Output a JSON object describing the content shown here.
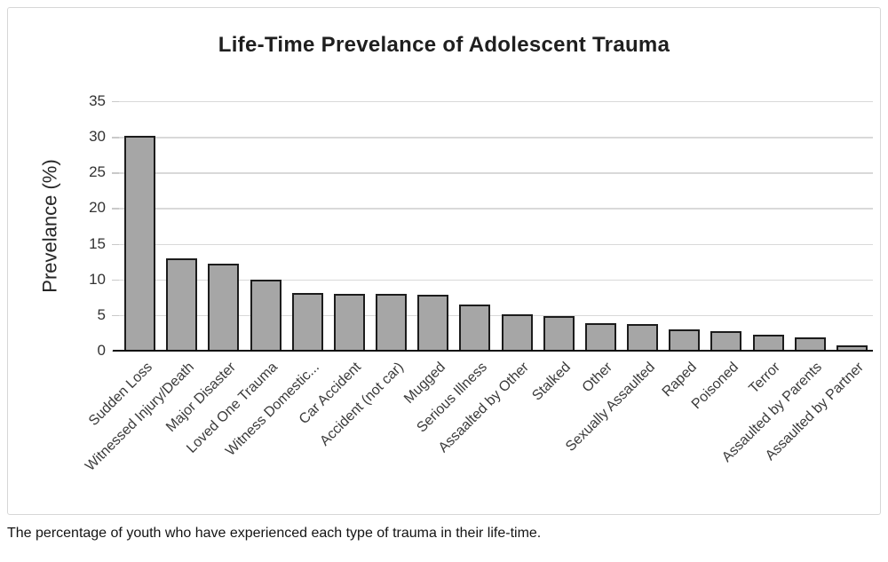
{
  "caption": "The percentage of youth who have experienced each type of trauma in their life-time.",
  "colors": {
    "bar_fill": "#a6a6a6",
    "bar_border": "#1c1c1c",
    "gridline": "#d9d9d9",
    "axis_line": "#0d0d0d",
    "frame_border": "#d7d7d7",
    "title_text": "#1f1f1f",
    "label_text": "#3a3a3a"
  },
  "chart_data": {
    "type": "bar",
    "title": "Life-Time Prevelance of Adolescent Trauma",
    "xlabel": "",
    "ylabel": "Prevelance (%)",
    "ylim": [
      0,
      35
    ],
    "yticks": [
      0,
      5,
      10,
      15,
      20,
      25,
      30,
      35
    ],
    "grid": true,
    "legend": false,
    "bar_color": "#a6a6a6",
    "bar_border_color": "#1c1c1c",
    "categories": [
      "Sudden Loss",
      "Witnessed Injury/Death",
      "Major Disaster",
      "Loved One Trauma",
      "Witness Domestic...",
      "Car Accident",
      "Accident (not car)",
      "Mugged",
      "Serious Illness",
      "Assaalted by Other",
      "Stalked",
      "Other",
      "Sexually Assaulted",
      "Raped",
      "Poisoned",
      "Terror",
      "Assaulted by Parents",
      "Assaulted by Partner"
    ],
    "values": [
      30.2,
      13,
      12.2,
      10,
      8.1,
      8,
      8,
      7.8,
      6.5,
      5.1,
      4.9,
      3.9,
      3.7,
      3,
      2.7,
      2.2,
      1.9,
      0.8
    ]
  }
}
